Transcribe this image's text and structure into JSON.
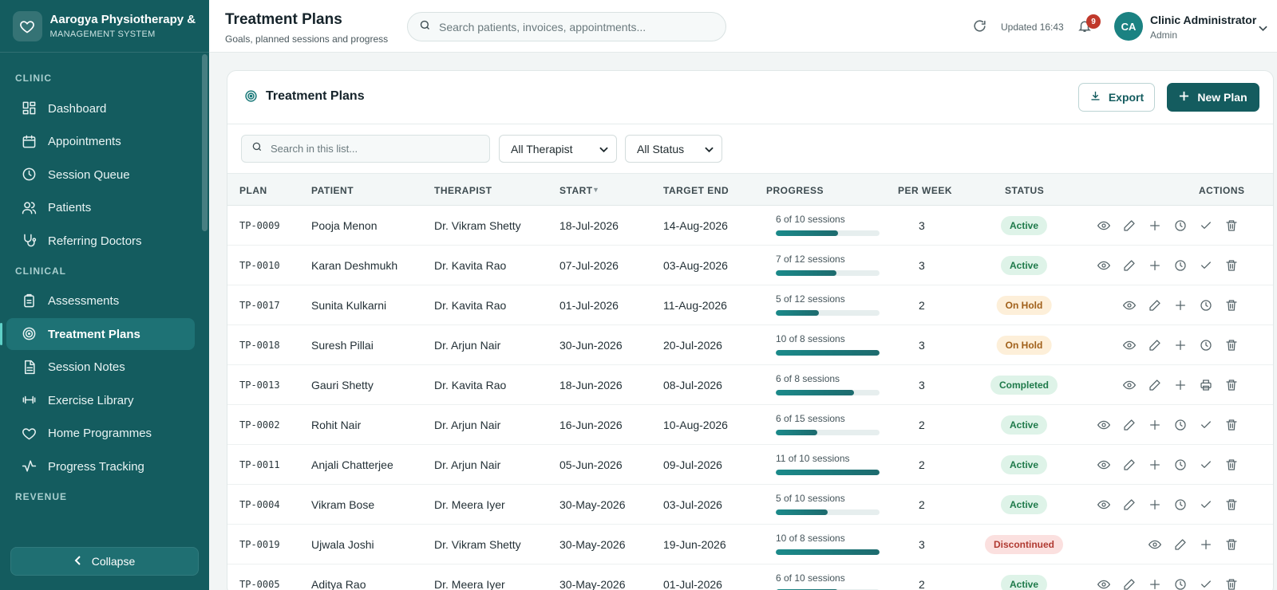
{
  "brand": {
    "name": "Aarogya Physiotherapy & I",
    "sub": "MANAGEMENT SYSTEM"
  },
  "sidebar": {
    "sections": [
      {
        "label": "CLINIC"
      },
      {
        "label": "CLINICAL"
      },
      {
        "label": "REVENUE"
      }
    ],
    "items": [
      {
        "label": "Dashboard",
        "icon": "dashboard-icon"
      },
      {
        "label": "Appointments",
        "icon": "calendar-icon"
      },
      {
        "label": "Session Queue",
        "icon": "clock-icon"
      },
      {
        "label": "Patients",
        "icon": "users-icon"
      },
      {
        "label": "Referring Doctors",
        "icon": "stethoscope-icon"
      },
      {
        "label": "Assessments",
        "icon": "clipboard-icon"
      },
      {
        "label": "Treatment Plans",
        "icon": "target-icon",
        "active": true
      },
      {
        "label": "Session Notes",
        "icon": "document-icon"
      },
      {
        "label": "Exercise Library",
        "icon": "dumbbell-icon"
      },
      {
        "label": "Home Programmes",
        "icon": "heart-icon"
      },
      {
        "label": "Progress Tracking",
        "icon": "activity-icon"
      }
    ],
    "collapse_label": "Collapse"
  },
  "header": {
    "title": "Treatment Plans",
    "subtitle": "Goals, planned sessions and progress",
    "search_placeholder": "Search patients, invoices, appointments...",
    "updated": "Updated 16:43",
    "notifications": "9",
    "avatar": "CA",
    "user_name": "Clinic Administrator",
    "user_role": "Admin"
  },
  "card": {
    "title": "Treatment Plans",
    "export_label": "Export",
    "new_label": "New Plan",
    "list_search_placeholder": "Search in this list...",
    "therapist_filter": "All Therapist",
    "status_filter": "All Status"
  },
  "table": {
    "columns": {
      "plan": "PLAN",
      "patient": "PATIENT",
      "therapist": "THERAPIST",
      "start": "START",
      "target_end": "TARGET END",
      "progress": "PROGRESS",
      "per_week": "PER WEEK",
      "status": "STATUS",
      "actions": "ACTIONS"
    },
    "rows": [
      {
        "plan": "TP-0009",
        "patient": "Pooja Menon",
        "therapist": "Dr. Vikram Shetty",
        "start": "18-Jul-2026",
        "end": "14-Aug-2026",
        "progress": "6 of 10 sessions",
        "done": 6,
        "total": 10,
        "per_week": "3",
        "status": "Active",
        "status_kind": "active",
        "actions": [
          "view",
          "edit",
          "add",
          "history",
          "complete",
          "delete"
        ]
      },
      {
        "plan": "TP-0010",
        "patient": "Karan Deshmukh",
        "therapist": "Dr. Kavita Rao",
        "start": "07-Jul-2026",
        "end": "03-Aug-2026",
        "progress": "7 of 12 sessions",
        "done": 7,
        "total": 12,
        "per_week": "3",
        "status": "Active",
        "status_kind": "active",
        "actions": [
          "view",
          "edit",
          "add",
          "history",
          "complete",
          "delete"
        ]
      },
      {
        "plan": "TP-0017",
        "patient": "Sunita Kulkarni",
        "therapist": "Dr. Kavita Rao",
        "start": "01-Jul-2026",
        "end": "11-Aug-2026",
        "progress": "5 of 12 sessions",
        "done": 5,
        "total": 12,
        "per_week": "2",
        "status": "On Hold",
        "status_kind": "hold",
        "actions": [
          "view",
          "edit",
          "add",
          "history",
          "delete"
        ]
      },
      {
        "plan": "TP-0018",
        "patient": "Suresh Pillai",
        "therapist": "Dr. Arjun Nair",
        "start": "30-Jun-2026",
        "end": "20-Jul-2026",
        "progress": "10 of 8 sessions",
        "done": 10,
        "total": 8,
        "per_week": "3",
        "status": "On Hold",
        "status_kind": "hold",
        "actions": [
          "view",
          "edit",
          "add",
          "history",
          "delete"
        ]
      },
      {
        "plan": "TP-0013",
        "patient": "Gauri Shetty",
        "therapist": "Dr. Kavita Rao",
        "start": "18-Jun-2026",
        "end": "08-Jul-2026",
        "progress": "6 of 8 sessions",
        "done": 6,
        "total": 8,
        "per_week": "3",
        "status": "Completed",
        "status_kind": "completed",
        "actions": [
          "view",
          "edit",
          "add",
          "print",
          "delete"
        ]
      },
      {
        "plan": "TP-0002",
        "patient": "Rohit Nair",
        "therapist": "Dr. Arjun Nair",
        "start": "16-Jun-2026",
        "end": "10-Aug-2026",
        "progress": "6 of 15 sessions",
        "done": 6,
        "total": 15,
        "per_week": "2",
        "status": "Active",
        "status_kind": "active",
        "actions": [
          "view",
          "edit",
          "add",
          "history",
          "complete",
          "delete"
        ]
      },
      {
        "plan": "TP-0011",
        "patient": "Anjali Chatterjee",
        "therapist": "Dr. Arjun Nair",
        "start": "05-Jun-2026",
        "end": "09-Jul-2026",
        "progress": "11 of 10 sessions",
        "done": 11,
        "total": 10,
        "per_week": "2",
        "status": "Active",
        "status_kind": "active",
        "actions": [
          "view",
          "edit",
          "add",
          "history",
          "complete",
          "delete"
        ]
      },
      {
        "plan": "TP-0004",
        "patient": "Vikram Bose",
        "therapist": "Dr. Meera Iyer",
        "start": "30-May-2026",
        "end": "03-Jul-2026",
        "progress": "5 of 10 sessions",
        "done": 5,
        "total": 10,
        "per_week": "2",
        "status": "Active",
        "status_kind": "active",
        "actions": [
          "view",
          "edit",
          "add",
          "history",
          "complete",
          "delete"
        ]
      },
      {
        "plan": "TP-0019",
        "patient": "Ujwala Joshi",
        "therapist": "Dr. Vikram Shetty",
        "start": "30-May-2026",
        "end": "19-Jun-2026",
        "progress": "10 of 8 sessions",
        "done": 10,
        "total": 8,
        "per_week": "3",
        "status": "Discontinued",
        "status_kind": "disc",
        "actions": [
          "view",
          "edit",
          "add",
          "delete"
        ]
      },
      {
        "plan": "TP-0005",
        "patient": "Aditya Rao",
        "therapist": "Dr. Meera Iyer",
        "start": "30-May-2026",
        "end": "01-Jul-2026",
        "progress": "6 of 10 sessions",
        "done": 6,
        "total": 10,
        "per_week": "2",
        "status": "Active",
        "status_kind": "active",
        "actions": [
          "view",
          "edit",
          "add",
          "history",
          "complete",
          "delete"
        ]
      }
    ]
  },
  "colors": {
    "sidebar": "#145c5f",
    "accent": "#145c5f",
    "progress": "#1b8a8a"
  }
}
